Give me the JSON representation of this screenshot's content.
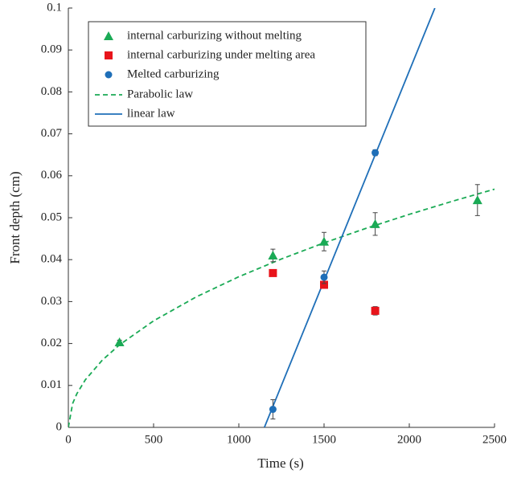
{
  "chart_data": {
    "type": "scatter",
    "xlabel": "Time (s)",
    "ylabel": "Front depth (cm)",
    "xlim": [
      0,
      2500
    ],
    "xticks": [
      0,
      500,
      1000,
      1500,
      2000,
      2500
    ],
    "ylim": [
      0,
      0.1
    ],
    "yticks": [
      0,
      0.01,
      0.02,
      0.03,
      0.04,
      0.05,
      0.06,
      0.07,
      0.08,
      0.09,
      0.1
    ],
    "grid": false,
    "legend": "upper left",
    "series": [
      {
        "name": "internal carburizing without melting",
        "color": "#1aaa55",
        "marker": "triangle",
        "x": [
          300,
          1200,
          1500,
          1800,
          2400
        ],
        "values": [
          0.0203,
          0.041,
          0.0443,
          0.0485,
          0.0542
        ],
        "errors": [
          0.0005,
          0.0015,
          0.0022,
          0.0027,
          0.0037
        ]
      },
      {
        "name": "internal carburizing under melting area",
        "color": "#e8141b",
        "marker": "square",
        "x": [
          1200,
          1500,
          1800
        ],
        "values": [
          0.0368,
          0.034,
          0.0278
        ],
        "errors": [
          0.0007,
          0.0006,
          0.001
        ]
      },
      {
        "name": "Melted carburizing",
        "color": "#1f6fb8",
        "marker": "circle",
        "x": [
          1200,
          1500,
          1800
        ],
        "values": [
          0.0043,
          0.0358,
          0.0655
        ],
        "errors": [
          0.0023,
          0.0015,
          0.0007
        ]
      },
      {
        "name": "Parabolic law",
        "color": "#1aaa55",
        "marker": "none",
        "line_style": "dashed",
        "x": [
          0,
          25,
          50,
          100,
          200,
          300,
          500,
          750,
          1000,
          1250,
          1500,
          1750,
          2000,
          2250,
          2500
        ],
        "values": [
          0,
          0.00568,
          0.00803,
          0.01136,
          0.01607,
          0.01968,
          0.0254,
          0.03111,
          0.03592,
          0.04016,
          0.044,
          0.04752,
          0.0508,
          0.05389,
          0.0568
        ]
      },
      {
        "name": "linear law",
        "color": "#1f6fb8",
        "marker": "none",
        "line_style": "solid",
        "x": [
          1150,
          2150
        ],
        "values": [
          0,
          0.1
        ]
      }
    ]
  }
}
